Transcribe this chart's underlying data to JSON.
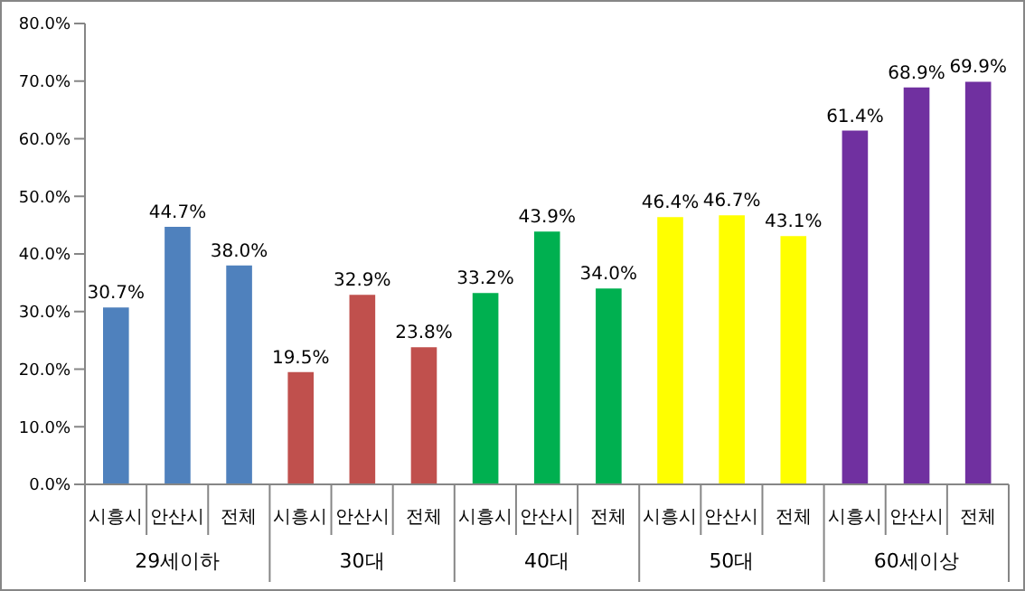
{
  "chart_data": {
    "type": "bar",
    "categories": [
      "시흥시",
      "안산시",
      "전체",
      "시흥시",
      "안산시",
      "전체",
      "시흥시",
      "안산시",
      "전체",
      "시흥시",
      "안산시",
      "전체",
      "시흥시",
      "안산시",
      "전체"
    ],
    "values": [
      30.7,
      44.7,
      38.0,
      19.5,
      32.9,
      23.8,
      33.2,
      43.9,
      34.0,
      46.4,
      46.7,
      43.1,
      61.4,
      68.9,
      69.9
    ],
    "colors": [
      "#4f81bd",
      "#4f81bd",
      "#4f81bd",
      "#c0504d",
      "#c0504d",
      "#c0504d",
      "#00b050",
      "#00b050",
      "#00b050",
      "#ffff00",
      "#ffff00",
      "#ffff00",
      "#7030a0",
      "#7030a0",
      "#7030a0"
    ],
    "value_labels": [
      "30.7%",
      "44.7%",
      "38.0%",
      "19.5%",
      "32.9%",
      "23.8%",
      "33.2%",
      "43.9%",
      "34.0%",
      "46.4%",
      "46.7%",
      "43.1%",
      "61.4%",
      "68.9%",
      "69.9%"
    ],
    "ylim": [
      0,
      80
    ],
    "yticks": [
      {
        "value": 0,
        "label": "0.0%"
      },
      {
        "value": 10,
        "label": "10.0%"
      },
      {
        "value": 20,
        "label": "20.0%"
      },
      {
        "value": 30,
        "label": "30.0%"
      },
      {
        "value": 40,
        "label": "40.0%"
      },
      {
        "value": 50,
        "label": "50.0%"
      },
      {
        "value": 60,
        "label": "60.0%"
      },
      {
        "value": 70,
        "label": "70.0%"
      },
      {
        "value": 80,
        "label": "80.0%"
      }
    ],
    "annotations": [
      "29세이하",
      "30대",
      "40대",
      "50대",
      "60세이상"
    ],
    "grid": false
  }
}
